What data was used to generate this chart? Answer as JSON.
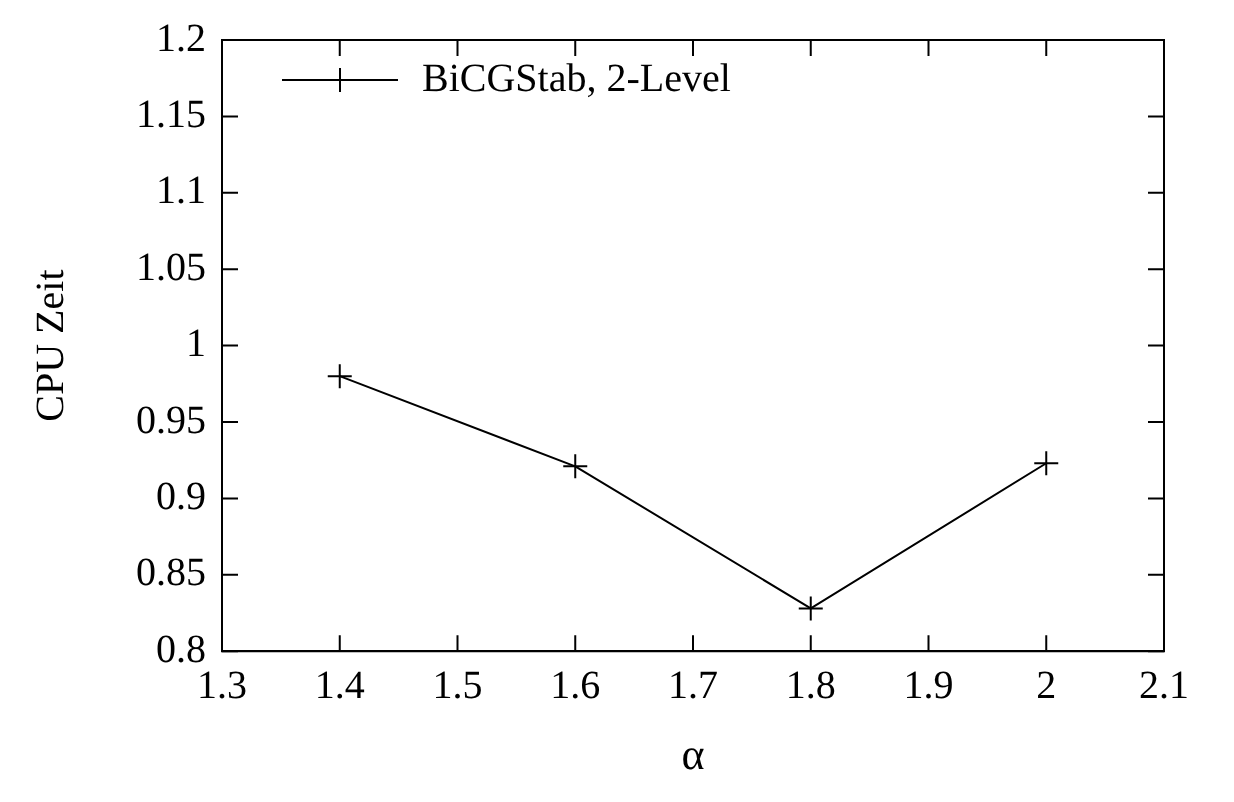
{
  "chart_data": {
    "type": "line",
    "xlabel": "α",
    "ylabel": "CPU Zeit",
    "x": [
      1.4,
      1.6,
      1.8,
      2.0
    ],
    "series": [
      {
        "name": "BiCGStab, 2-Level",
        "color": "#000000",
        "values": [
          0.98,
          0.921,
          0.828,
          0.923
        ]
      }
    ],
    "xlim": [
      1.3,
      2.1
    ],
    "xticks": [
      1.3,
      1.4,
      1.5,
      1.6,
      1.7,
      1.8,
      1.9,
      2,
      2.1
    ],
    "ylim": [
      0.8,
      1.2
    ],
    "yticks": [
      0.8,
      0.85,
      0.9,
      0.95,
      1,
      1.05,
      1.1,
      1.15,
      1.2
    ],
    "grid": false,
    "legend": "top left",
    "marker": "cross",
    "line_style": "solid"
  }
}
